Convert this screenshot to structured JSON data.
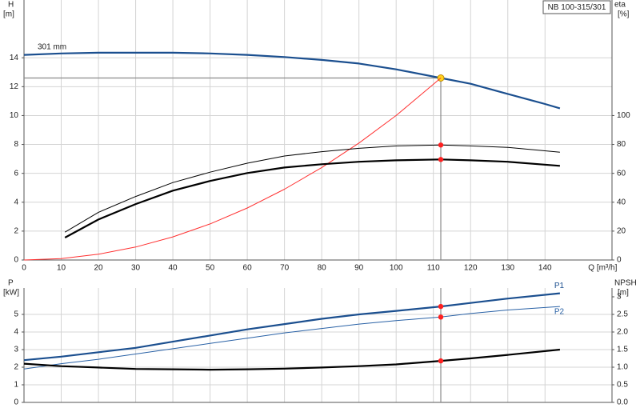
{
  "chart_data": [
    {
      "type": "line",
      "title": "NB 100-315/301",
      "ylabel": "H",
      "yunit": "[m]",
      "y2label": "eta",
      "y2unit": "[%]",
      "xlabel": "Q [m³/h]",
      "xlim": [
        0,
        158
      ],
      "xticks": [
        0,
        10,
        20,
        30,
        40,
        50,
        60,
        70,
        80,
        90,
        100,
        110,
        120,
        130,
        140
      ],
      "ylim": [
        0,
        18
      ],
      "yticks": [
        0,
        2,
        4,
        6,
        8,
        10,
        12,
        14
      ],
      "y2lim": [
        0,
        180
      ],
      "y2ticks": [
        0,
        20,
        40,
        60,
        80,
        100
      ],
      "grid": true,
      "operating_point": {
        "x": 112
      },
      "crosshair": true,
      "series": [
        {
          "name": "301 mm",
          "color": "#1b4f8f",
          "linestyle": "thick",
          "marker_color": "#ffd21f",
          "x": [
            0,
            10,
            20,
            30,
            40,
            50,
            60,
            70,
            80,
            90,
            100,
            112,
            120,
            130,
            140,
            144
          ],
          "values": [
            14.2,
            14.3,
            14.35,
            14.35,
            14.35,
            14.3,
            14.2,
            14.05,
            13.85,
            13.6,
            13.2,
            12.6,
            12.2,
            11.5,
            10.8,
            10.5
          ]
        },
        {
          "color": "#ff3030",
          "linestyle": "thin",
          "x": [
            0,
            10,
            20,
            30,
            40,
            50,
            60,
            70,
            80,
            90,
            100,
            112
          ],
          "values": [
            0,
            0.1,
            0.4,
            0.9,
            1.6,
            2.5,
            3.6,
            4.9,
            6.4,
            8.1,
            10.0,
            12.6
          ]
        },
        {
          "color": "#000000",
          "linestyle": "thin",
          "axis": "y2",
          "marker_color": "#ff2020",
          "x": [
            11,
            20,
            30,
            40,
            50,
            60,
            70,
            80,
            90,
            100,
            112,
            120,
            130,
            144
          ],
          "values": [
            19.3,
            33,
            44,
            53.6,
            60.8,
            67,
            72,
            75,
            77.3,
            79,
            79.6,
            79,
            78,
            74.6
          ]
        },
        {
          "color": "#000000",
          "linestyle": "thick",
          "axis": "y2",
          "marker_color": "#ff2020",
          "x": [
            11,
            20,
            30,
            40,
            50,
            60,
            70,
            80,
            90,
            100,
            112,
            120,
            130,
            144
          ],
          "values": [
            15.5,
            28,
            38.7,
            48,
            54.7,
            60.2,
            64,
            66.3,
            68,
            69,
            69.6,
            69,
            68,
            65.2
          ]
        }
      ]
    },
    {
      "type": "line",
      "ylabel": "P",
      "yunit": "[kW]",
      "y2label": "NPSH",
      "y2unit": "[m]",
      "xlim": [
        0,
        158
      ],
      "ylim": [
        0,
        6.5
      ],
      "yticks": [
        0,
        1,
        2,
        3,
        4,
        5
      ],
      "y2lim": [
        0,
        3.25
      ],
      "y2ticks": [
        {
          "value": 0,
          "label": "0.0"
        },
        0.5,
        {
          "value": 1,
          "label": "1.0"
        },
        1.5,
        {
          "value": 2,
          "label": "2.0"
        },
        2.5,
        3
      ],
      "grid": true,
      "operating_point": {
        "x": 112
      },
      "series": [
        {
          "name": "P1",
          "color": "#1b4f8f",
          "linestyle": "thick",
          "marker_color": "#ff2020",
          "x": [
            0,
            10,
            20,
            30,
            40,
            50,
            60,
            70,
            80,
            90,
            100,
            112,
            120,
            130,
            144
          ],
          "values": [
            2.4,
            2.6,
            2.85,
            3.1,
            3.45,
            3.8,
            4.15,
            4.45,
            4.75,
            5.0,
            5.2,
            5.45,
            5.65,
            5.9,
            6.2
          ]
        },
        {
          "name": "P2",
          "color": "#2a62a6",
          "linestyle": "thin",
          "marker_color": "#ff2020",
          "x": [
            0,
            10,
            20,
            30,
            40,
            50,
            60,
            70,
            80,
            90,
            100,
            112,
            120,
            130,
            144
          ],
          "values": [
            1.9,
            2.2,
            2.45,
            2.75,
            3.05,
            3.35,
            3.65,
            3.95,
            4.2,
            4.45,
            4.65,
            4.85,
            5.05,
            5.25,
            5.45
          ]
        },
        {
          "color": "#000000",
          "linestyle": "thick",
          "axis": "y2",
          "marker_color": "#ff2020",
          "x": [
            0,
            10,
            20,
            30,
            40,
            50,
            60,
            70,
            80,
            90,
            100,
            112,
            120,
            130,
            144
          ],
          "values": [
            1.1,
            1.03,
            0.99,
            0.95,
            0.94,
            0.93,
            0.94,
            0.96,
            0.99,
            1.03,
            1.08,
            1.18,
            1.25,
            1.35,
            1.5
          ]
        }
      ]
    }
  ]
}
